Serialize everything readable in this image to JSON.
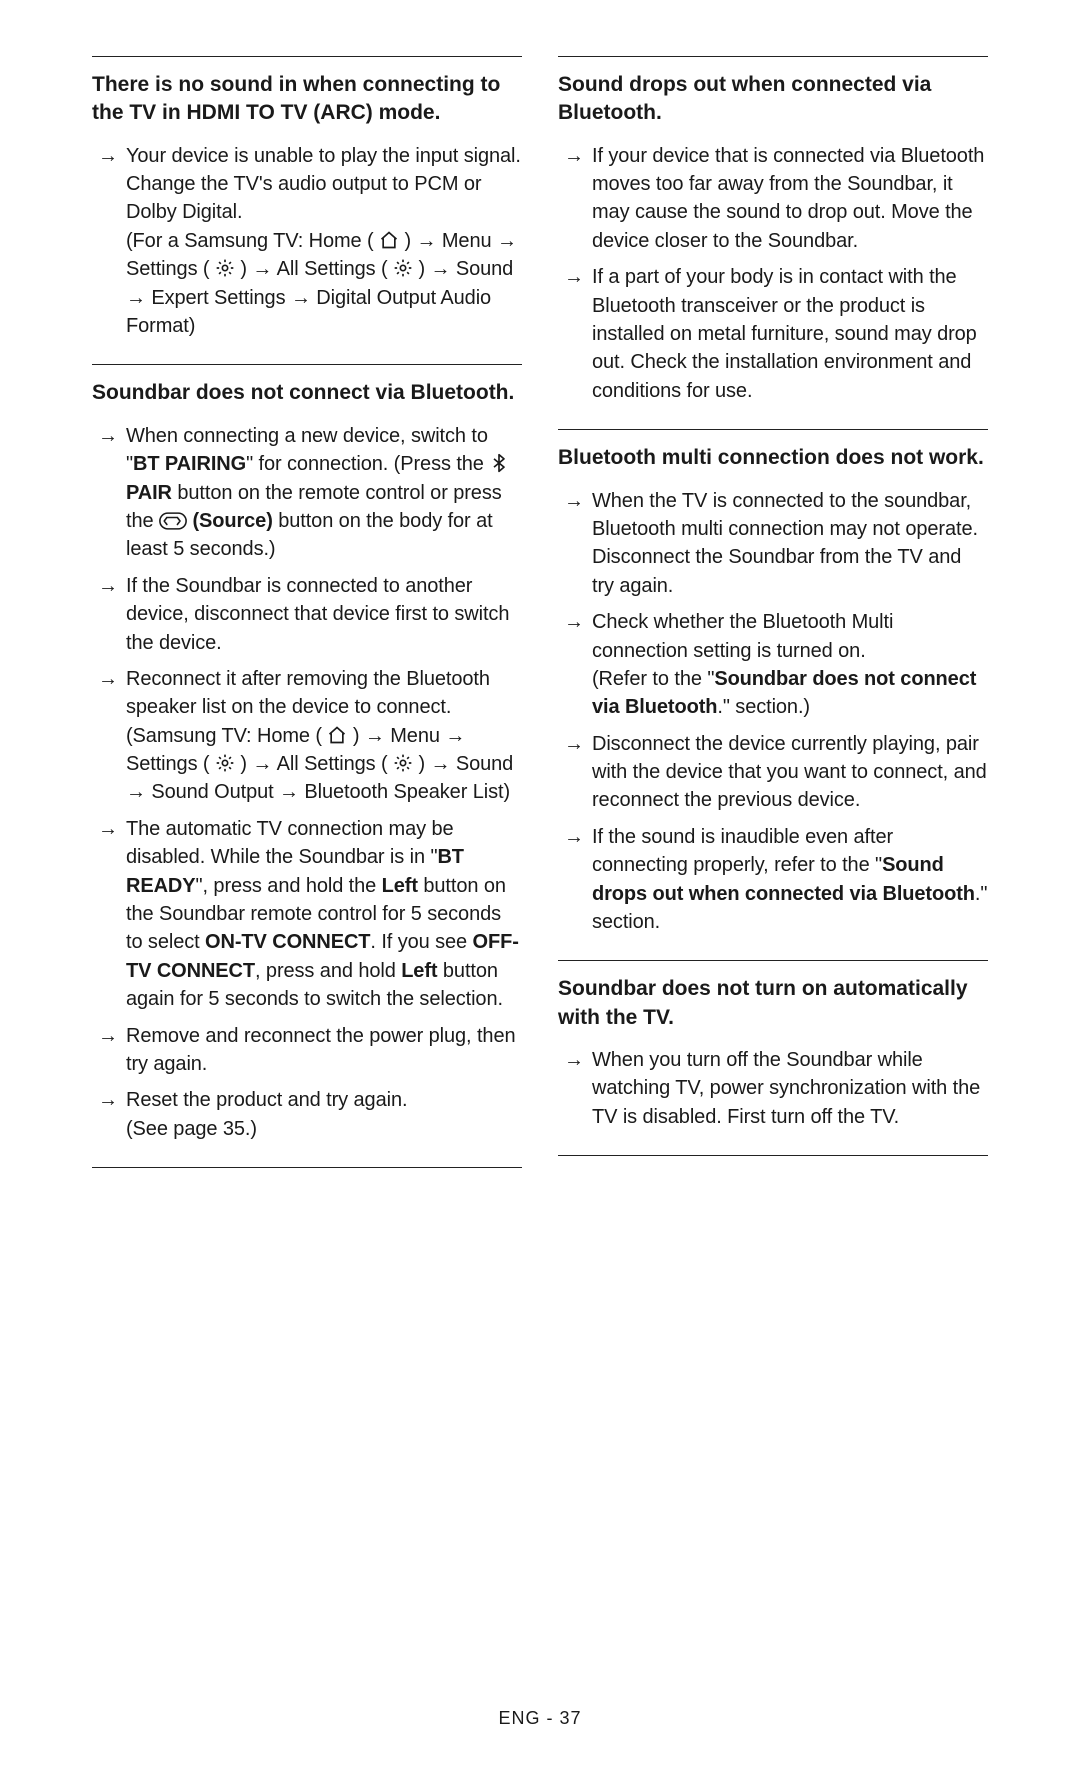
{
  "footer": "ENG - 37",
  "icons": {
    "home": "home-icon",
    "settings": "settings-icon",
    "bluetooth": "bluetooth-icon",
    "source": "source-icon"
  },
  "left": [
    {
      "title": "There is no sound in when connecting to the TV in HDMI TO TV (ARC) mode.",
      "items": [
        {
          "parts": [
            {
              "t": "text",
              "v": "Your device is unable to play the input signal. Change the TV's audio output to PCM or Dolby Digital."
            },
            {
              "t": "br"
            },
            {
              "t": "text",
              "v": "(For a Samsung TV: Home ( "
            },
            {
              "t": "icon",
              "v": "home"
            },
            {
              "t": "text",
              "v": " ) → Menu → Settings ( "
            },
            {
              "t": "icon",
              "v": "settings"
            },
            {
              "t": "text",
              "v": " ) → All Settings ( "
            },
            {
              "t": "icon",
              "v": "settings"
            },
            {
              "t": "text",
              "v": " ) → Sound → Expert Settings → Digital Output Audio Format)"
            }
          ]
        }
      ]
    },
    {
      "title": "Soundbar does not connect via Bluetooth.",
      "last": true,
      "items": [
        {
          "parts": [
            {
              "t": "text",
              "v": "When connecting a new device, switch to \""
            },
            {
              "t": "bold",
              "v": "BT PAIRING"
            },
            {
              "t": "text",
              "v": "\" for connection. (Press the "
            },
            {
              "t": "icon",
              "v": "bluetooth"
            },
            {
              "t": "text",
              "v": " "
            },
            {
              "t": "bold",
              "v": "PAIR"
            },
            {
              "t": "text",
              "v": " button on the remote control or press the "
            },
            {
              "t": "icon",
              "v": "source"
            },
            {
              "t": "text",
              "v": " "
            },
            {
              "t": "bold",
              "v": "(Source)"
            },
            {
              "t": "text",
              "v": " button on the body for at least 5 seconds.)"
            }
          ]
        },
        {
          "parts": [
            {
              "t": "text",
              "v": "If the Soundbar is connected to another device, disconnect that device first to switch the device."
            }
          ]
        },
        {
          "parts": [
            {
              "t": "text",
              "v": "Reconnect it after removing the Bluetooth speaker list on the device to connect."
            },
            {
              "t": "br"
            },
            {
              "t": "text",
              "v": "(Samsung TV: Home ( "
            },
            {
              "t": "icon",
              "v": "home"
            },
            {
              "t": "text",
              "v": " ) → Menu → Settings ( "
            },
            {
              "t": "icon",
              "v": "settings"
            },
            {
              "t": "text",
              "v": " ) → All Settings ( "
            },
            {
              "t": "icon",
              "v": "settings"
            },
            {
              "t": "text",
              "v": " ) → Sound → Sound Output → Bluetooth Speaker List)"
            }
          ]
        },
        {
          "parts": [
            {
              "t": "text",
              "v": "The automatic TV connection may be disabled. While the Soundbar is in \""
            },
            {
              "t": "bold",
              "v": "BT READY"
            },
            {
              "t": "text",
              "v": "\", press and hold the "
            },
            {
              "t": "bold",
              "v": "Left"
            },
            {
              "t": "text",
              "v": " button on the Soundbar remote control for 5 seconds to select "
            },
            {
              "t": "bold",
              "v": "ON-TV CONNECT"
            },
            {
              "t": "text",
              "v": ". If you see "
            },
            {
              "t": "bold",
              "v": "OFF-TV CONNECT"
            },
            {
              "t": "text",
              "v": ", press and hold "
            },
            {
              "t": "bold",
              "v": "Left"
            },
            {
              "t": "text",
              "v": " button again for 5 seconds to switch the selection."
            }
          ]
        },
        {
          "parts": [
            {
              "t": "text",
              "v": "Remove and reconnect the power plug, then try again."
            }
          ]
        },
        {
          "parts": [
            {
              "t": "text",
              "v": "Reset the product and try again."
            },
            {
              "t": "br"
            },
            {
              "t": "text",
              "v": "(See page 35.)"
            }
          ]
        }
      ]
    }
  ],
  "right": [
    {
      "title": "Sound drops out when connected via Bluetooth.",
      "items": [
        {
          "parts": [
            {
              "t": "text",
              "v": "If your device that is connected via Bluetooth moves too far away from the Soundbar, it may cause the sound to drop out. Move the device closer to the Soundbar."
            }
          ]
        },
        {
          "parts": [
            {
              "t": "text",
              "v": "If a part of your body is in contact with the Bluetooth transceiver or the product is installed on metal furniture, sound may drop out. Check the installation environment and conditions for use."
            }
          ]
        }
      ]
    },
    {
      "title": "Bluetooth multi connection does not work.",
      "items": [
        {
          "parts": [
            {
              "t": "text",
              "v": "When the TV is connected to the soundbar, Bluetooth multi connection may not operate. Disconnect the Soundbar from the TV and try again."
            }
          ]
        },
        {
          "parts": [
            {
              "t": "text",
              "v": "Check whether the Bluetooth Multi connection setting is turned on."
            },
            {
              "t": "br"
            },
            {
              "t": "text",
              "v": "(Refer to the \""
            },
            {
              "t": "bold",
              "v": "Soundbar does not connect via Bluetooth"
            },
            {
              "t": "text",
              "v": ".\" section.)"
            }
          ]
        },
        {
          "parts": [
            {
              "t": "text",
              "v": "Disconnect the device currently playing, pair with the device that you want to connect, and reconnect the previous device."
            }
          ]
        },
        {
          "parts": [
            {
              "t": "text",
              "v": "If the sound is inaudible even after connecting properly, refer to the \""
            },
            {
              "t": "bold",
              "v": "Sound drops out when connected via Bluetooth"
            },
            {
              "t": "text",
              "v": ".\" section."
            }
          ]
        }
      ]
    },
    {
      "title": "Soundbar does not turn on automatically with the TV.",
      "last": true,
      "items": [
        {
          "parts": [
            {
              "t": "text",
              "v": "When you turn off the Soundbar while watching TV, power synchronization with the TV is disabled. First turn off the TV."
            }
          ]
        }
      ]
    }
  ]
}
